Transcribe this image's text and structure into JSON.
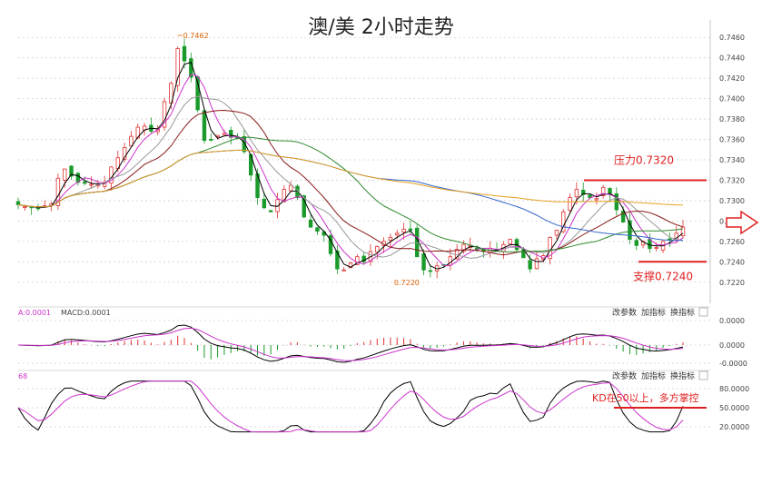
{
  "chart_data": [
    {
      "type": "candlestick",
      "title": "澳/美 2小时走势",
      "ylim": [
        0.721,
        0.747
      ],
      "yticks": [
        "0.7460",
        "0.7440",
        "0.7420",
        "0.7400",
        "0.7380",
        "0.7360",
        "0.7340",
        "0.7320",
        "0.7300",
        "0.7280",
        "0.7260",
        "0.7240",
        "0.7220"
      ],
      "annotations": {
        "high_label": "0.7462",
        "low_label": "0.7220",
        "resistance_label": "压力0.7320",
        "resistance_level": 0.732,
        "support_label": "支撑0.7240",
        "support_level": 0.724
      },
      "close": [
        0.7296,
        0.7294,
        0.7293,
        0.7292,
        0.7295,
        0.7297,
        0.7322,
        0.7331,
        0.7324,
        0.7318,
        0.7317,
        0.7316,
        0.7316,
        0.7318,
        0.7333,
        0.7342,
        0.7352,
        0.7363,
        0.7372,
        0.7373,
        0.7368,
        0.737,
        0.7397,
        0.7415,
        0.7449,
        0.7437,
        0.7421,
        0.7389,
        0.7359,
        0.736,
        0.7364,
        0.7366,
        0.7362,
        0.7361,
        0.7348,
        0.7325,
        0.7303,
        0.7293,
        0.7289,
        0.7301,
        0.7311,
        0.7315,
        0.7303,
        0.7284,
        0.7274,
        0.727,
        0.7266,
        0.7248,
        0.7233,
        0.7232,
        0.7239,
        0.7245,
        0.724,
        0.725,
        0.7255,
        0.726,
        0.7264,
        0.7268,
        0.7272,
        0.7271,
        0.7245,
        0.7232,
        0.7231,
        0.7236,
        0.7237,
        0.7245,
        0.7252,
        0.7257,
        0.7256,
        0.7251,
        0.725,
        0.7253,
        0.7251,
        0.7257,
        0.7262,
        0.7252,
        0.7244,
        0.7233,
        0.7243,
        0.7246,
        0.7264,
        0.7271,
        0.7289,
        0.7303,
        0.7311,
        0.7306,
        0.7303,
        0.7302,
        0.7313,
        0.7306,
        0.7291,
        0.7279,
        0.7262,
        0.7256,
        0.726,
        0.7253,
        0.7254,
        0.726,
        0.7262,
        0.7268,
        0.7274
      ],
      "series": [
        {
          "name": "MA5",
          "color": "#000000"
        },
        {
          "name": "MA10",
          "color": "#cc33cc"
        },
        {
          "name": "MA20",
          "color": "#999999"
        },
        {
          "name": "MA30",
          "color": "#8b1a1a"
        },
        {
          "name": "MA60",
          "color": "#2e8b2e"
        },
        {
          "name": "MA120",
          "color": "#3366cc"
        },
        {
          "name": "MA250",
          "color": "#e6a020"
        }
      ]
    },
    {
      "type": "macd",
      "header": "A:0.0001",
      "header2": "MACD:0.0001",
      "yticks": [
        "0.0000",
        "0.0000",
        "-0.0000"
      ],
      "buttons": [
        "改参数",
        "加指标",
        "换指标"
      ]
    },
    {
      "type": "kdj",
      "header": "68",
      "yticks": [
        "80.0000",
        "50.0000",
        "20.0000"
      ],
      "annotation": "KD在50以上，多方掌控",
      "buttons": [
        "改参数",
        "加指标",
        "换指标"
      ]
    }
  ],
  "colors": {
    "up": "#e03030",
    "down": "#1a9a2a",
    "resistance": "#e02020",
    "grid": "#d0d0d0"
  }
}
